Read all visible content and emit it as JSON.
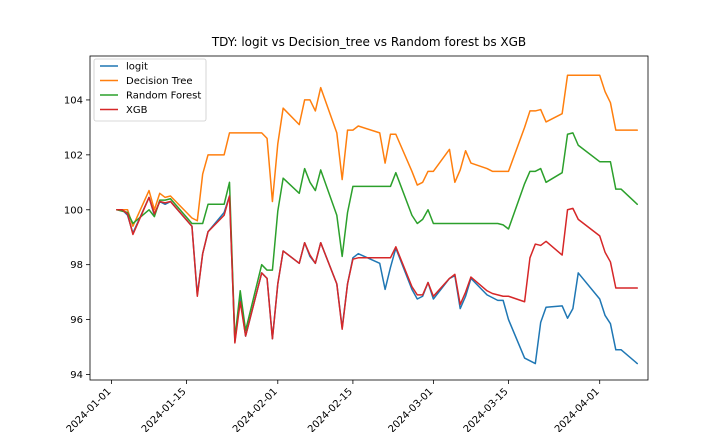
{
  "chart_data": {
    "type": "line",
    "title": "TDY: logit vs Decision_tree vs Random forest bs XGB",
    "xlabel": "",
    "ylabel": "",
    "x_type": "date",
    "xlim": [
      "2023-12-28",
      "2024-04-10"
    ],
    "ylim": [
      93.8,
      105.6
    ],
    "x_ticks": [
      "2024-01-01",
      "2024-01-15",
      "2024-02-01",
      "2024-02-15",
      "2024-03-01",
      "2024-03-15",
      "2024-04-01"
    ],
    "y_ticks": [
      94,
      96,
      98,
      100,
      102,
      104
    ],
    "grid": false,
    "legend_position": "upper left",
    "x": [
      "2024-01-02",
      "2024-01-03",
      "2024-01-04",
      "2024-01-05",
      "2024-01-08",
      "2024-01-09",
      "2024-01-10",
      "2024-01-11",
      "2024-01-12",
      "2024-01-16",
      "2024-01-17",
      "2024-01-18",
      "2024-01-19",
      "2024-01-22",
      "2024-01-23",
      "2024-01-24",
      "2024-01-25",
      "2024-01-26",
      "2024-01-29",
      "2024-01-30",
      "2024-01-31",
      "2024-02-01",
      "2024-02-02",
      "2024-02-05",
      "2024-02-06",
      "2024-02-07",
      "2024-02-08",
      "2024-02-09",
      "2024-02-12",
      "2024-02-13",
      "2024-02-14",
      "2024-02-15",
      "2024-02-16",
      "2024-02-20",
      "2024-02-21",
      "2024-02-22",
      "2024-02-23",
      "2024-02-26",
      "2024-02-27",
      "2024-02-28",
      "2024-02-29",
      "2024-03-01",
      "2024-03-04",
      "2024-03-05",
      "2024-03-06",
      "2024-03-07",
      "2024-03-08",
      "2024-03-11",
      "2024-03-12",
      "2024-03-13",
      "2024-03-14",
      "2024-03-15",
      "2024-03-18",
      "2024-03-19",
      "2024-03-20",
      "2024-03-21",
      "2024-03-22",
      "2024-03-25",
      "2024-03-26",
      "2024-03-27",
      "2024-03-28",
      "2024-04-01",
      "2024-04-02",
      "2024-04-03",
      "2024-04-04",
      "2024-04-05",
      "2024-04-08"
    ],
    "series": [
      {
        "name": "logit",
        "color": "#1f77b4",
        "values": [
          100.0,
          100.0,
          99.8,
          99.15,
          100.45,
          99.8,
          100.3,
          100.2,
          100.3,
          99.4,
          96.9,
          98.4,
          99.2,
          99.9,
          100.5,
          95.2,
          96.8,
          95.4,
          97.7,
          97.5,
          95.3,
          97.3,
          98.5,
          98.05,
          98.8,
          98.3,
          98.05,
          98.8,
          97.3,
          95.7,
          97.3,
          98.25,
          98.4,
          98.05,
          97.1,
          97.9,
          98.6,
          97.1,
          96.75,
          96.85,
          97.35,
          96.75,
          97.5,
          97.6,
          96.4,
          96.85,
          97.5,
          96.9,
          96.8,
          96.7,
          96.7,
          96.0,
          94.6,
          94.5,
          94.4,
          95.9,
          96.45,
          96.5,
          96.05,
          96.4,
          97.7,
          96.75,
          96.15,
          95.85,
          94.9,
          94.9,
          94.4
        ]
      },
      {
        "name": "Decision Tree",
        "color": "#ff7f0e",
        "values": [
          100.0,
          100.0,
          100.0,
          99.4,
          100.7,
          100.0,
          100.6,
          100.45,
          100.5,
          99.7,
          99.6,
          101.3,
          102.0,
          102.0,
          102.8,
          102.8,
          102.8,
          102.8,
          102.8,
          102.6,
          100.3,
          102.4,
          103.7,
          103.1,
          104.0,
          104.0,
          103.6,
          104.45,
          102.8,
          101.1,
          102.9,
          102.9,
          103.05,
          102.8,
          101.7,
          102.75,
          102.75,
          101.4,
          100.9,
          101.0,
          101.4,
          101.4,
          102.2,
          101.0,
          101.45,
          102.15,
          101.7,
          101.5,
          101.4,
          101.4,
          101.4,
          101.4,
          103.0,
          103.6,
          103.6,
          103.65,
          103.2,
          103.5,
          104.9,
          104.9,
          104.9,
          104.9,
          104.3,
          103.9,
          102.9,
          102.9,
          102.9
        ]
      },
      {
        "name": "Random Forest",
        "color": "#2ca02c",
        "values": [
          100.0,
          99.95,
          99.9,
          99.5,
          100.0,
          99.75,
          100.35,
          100.35,
          100.4,
          99.5,
          99.5,
          99.5,
          100.2,
          100.2,
          101.0,
          95.3,
          97.05,
          95.6,
          98.0,
          97.8,
          97.8,
          99.95,
          101.15,
          100.6,
          101.5,
          101.0,
          100.7,
          101.45,
          99.8,
          98.3,
          99.9,
          100.85,
          100.85,
          100.85,
          100.85,
          100.85,
          101.35,
          99.8,
          99.5,
          99.65,
          100.0,
          99.5,
          99.5,
          99.5,
          99.5,
          99.5,
          99.5,
          99.5,
          99.5,
          99.5,
          99.45,
          99.3,
          100.95,
          101.4,
          101.4,
          101.5,
          101.0,
          101.35,
          102.75,
          102.8,
          102.35,
          101.75,
          101.75,
          101.75,
          100.75,
          100.75,
          100.2
        ]
      },
      {
        "name": "XGB",
        "color": "#d62728",
        "values": [
          100.0,
          100.0,
          99.85,
          99.1,
          100.45,
          99.85,
          100.3,
          100.25,
          100.3,
          99.4,
          96.85,
          98.4,
          99.2,
          99.8,
          100.5,
          95.15,
          96.65,
          95.4,
          97.7,
          97.5,
          95.3,
          97.3,
          98.5,
          98.05,
          98.8,
          98.35,
          98.05,
          98.8,
          97.3,
          95.65,
          97.3,
          98.2,
          98.25,
          98.25,
          98.25,
          98.25,
          98.65,
          97.2,
          96.9,
          96.9,
          97.35,
          96.85,
          97.5,
          97.65,
          96.55,
          97.0,
          97.55,
          97.05,
          96.95,
          96.9,
          96.85,
          96.85,
          96.65,
          98.25,
          98.75,
          98.7,
          98.85,
          98.35,
          100.0,
          100.05,
          99.65,
          99.05,
          98.45,
          98.1,
          97.15,
          97.15,
          97.15
        ]
      }
    ]
  }
}
